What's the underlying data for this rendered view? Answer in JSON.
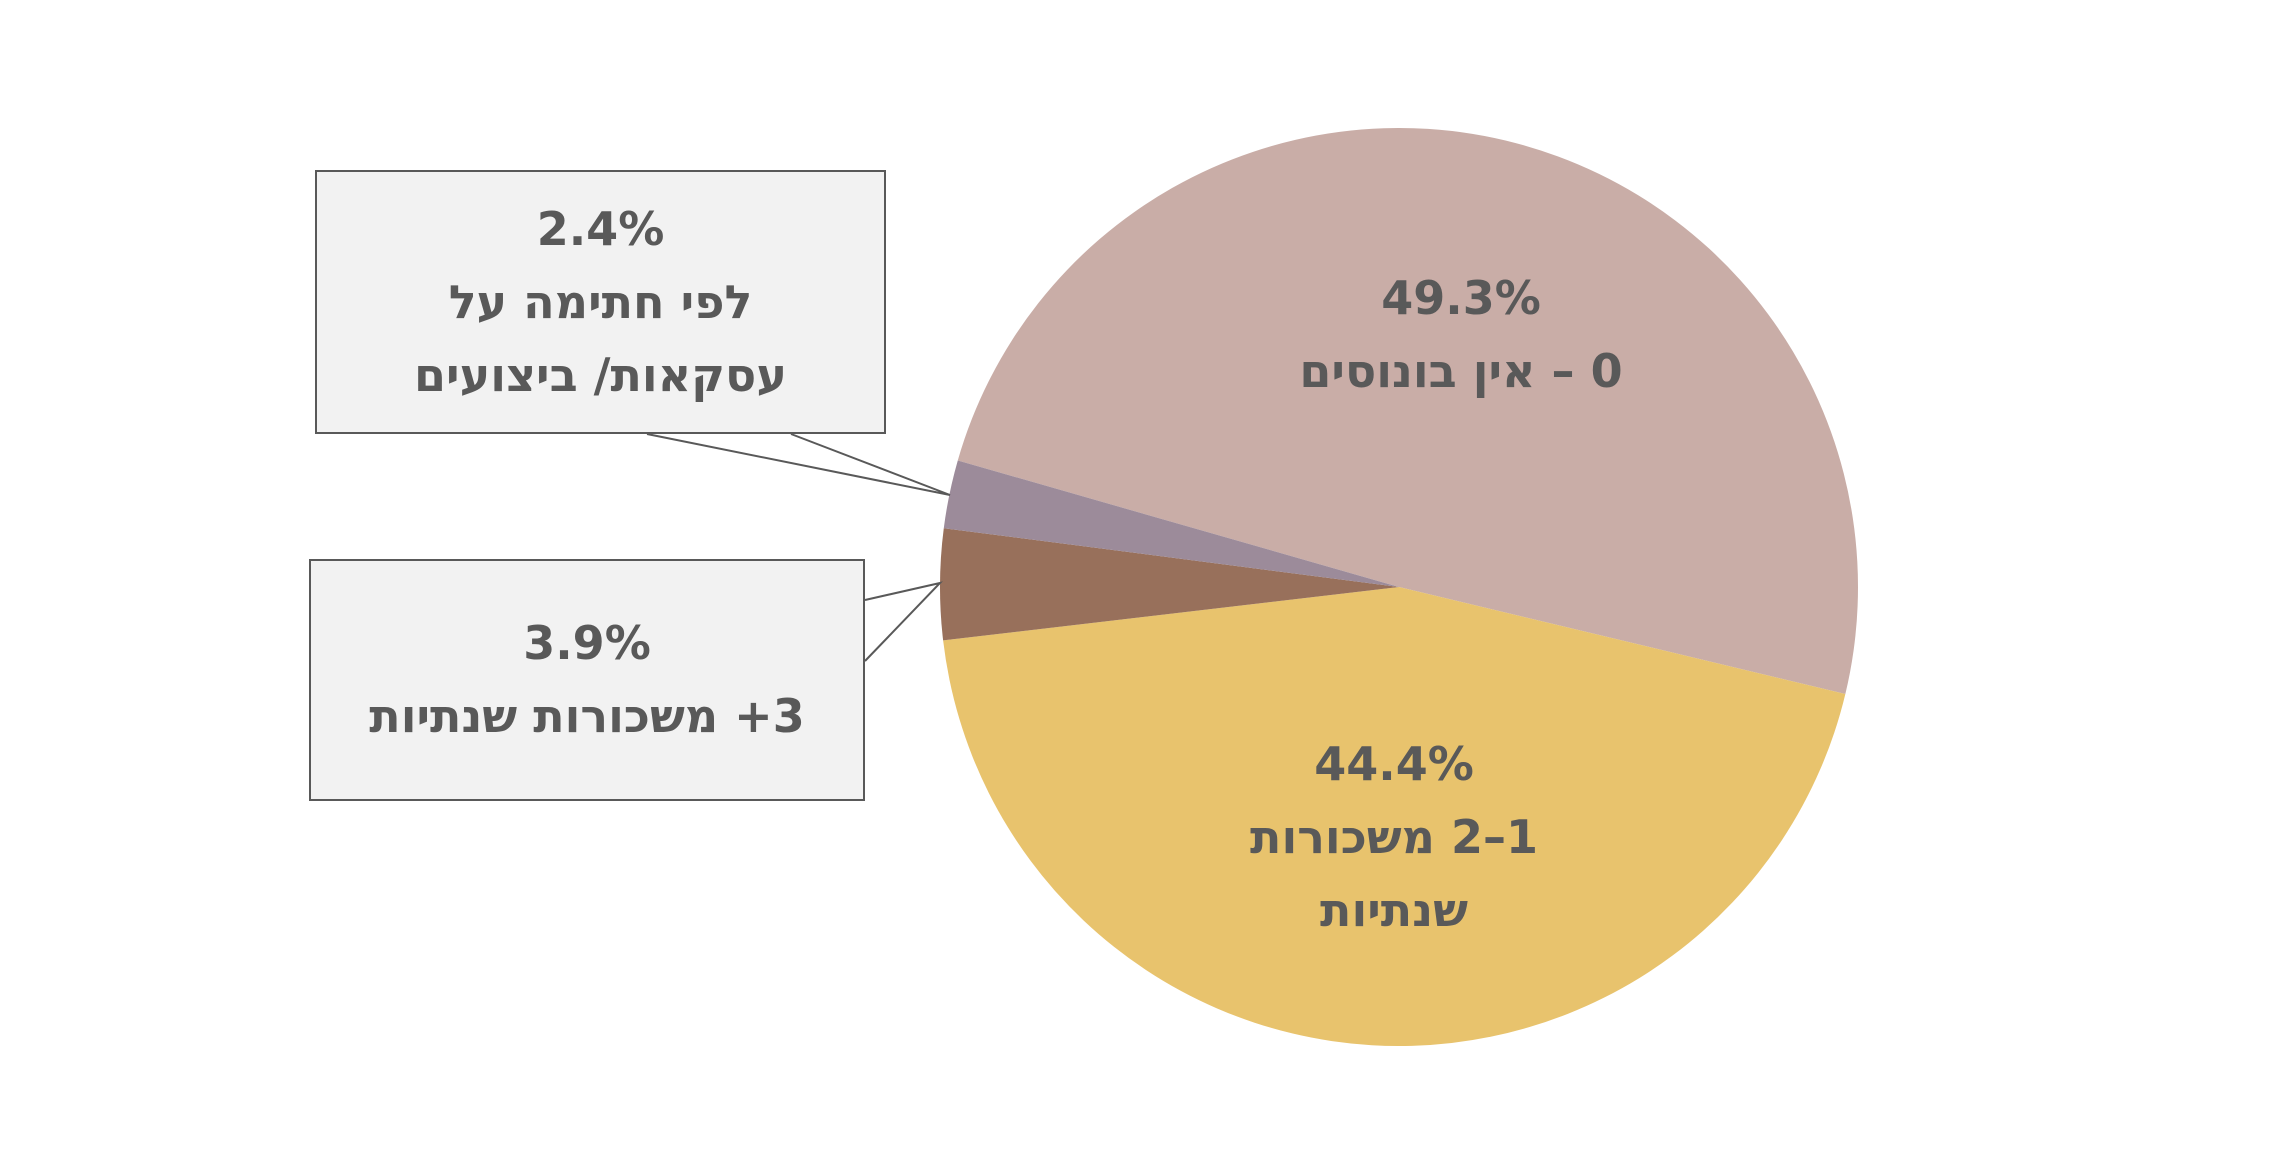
{
  "chart_data": {
    "type": "pie",
    "categories": [
      "0 – אין בונוסים",
      "1–2 משכורות שנתיות",
      "3+ משכורות שנתיות",
      "לפי חתימה על עסקאות/ ביצועים"
    ],
    "values": [
      49.3,
      44.4,
      3.9,
      2.4
    ],
    "value_labels": [
      "49.3%",
      "44.4%",
      "3.9%",
      "2.4%"
    ],
    "colors": [
      "#c9ada7",
      "#e8c36d",
      "#98705b",
      "#9c8b9a"
    ]
  }
}
